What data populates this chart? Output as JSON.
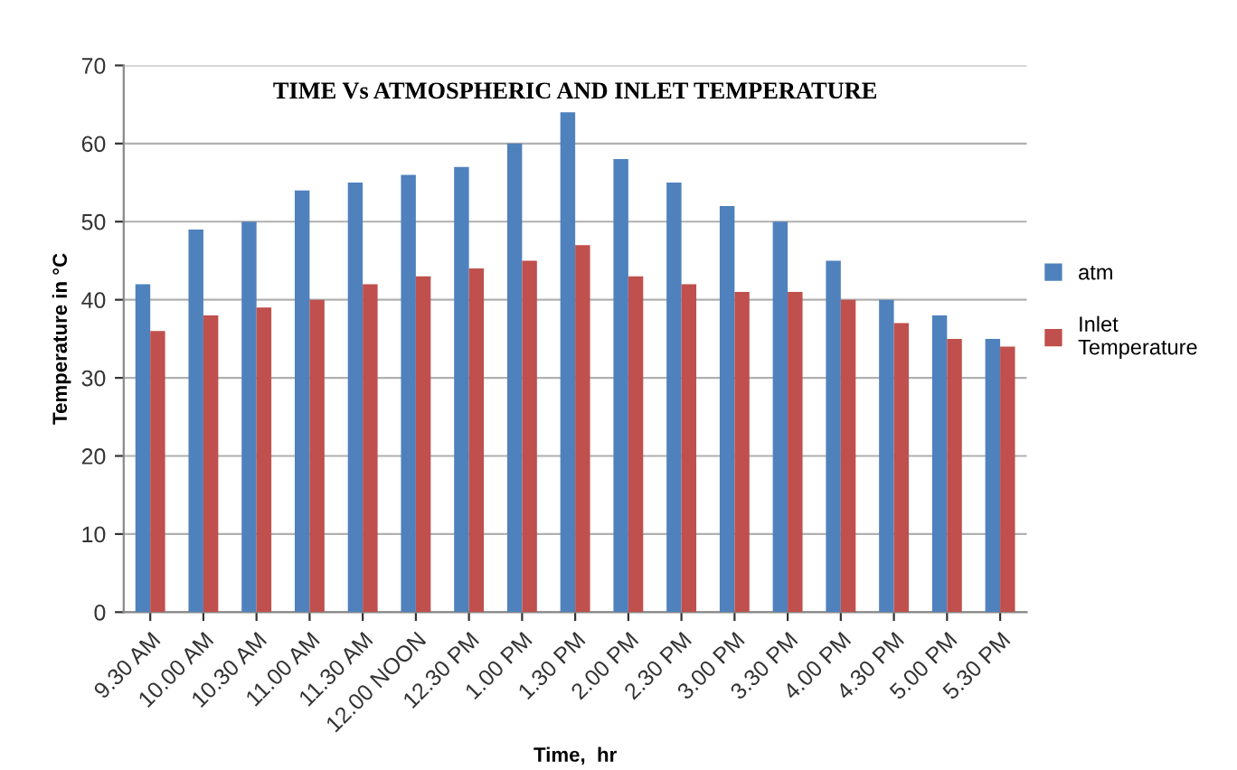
{
  "chart_data": {
    "type": "bar",
    "title": "TIME Vs ATMOSPHERIC AND INLET TEMPERATURE",
    "xlabel": "Time,  hr",
    "ylabel": "Temperature in °C",
    "categories": [
      "9.30 AM",
      "10.00 AM",
      "10.30 AM",
      "11.00 AM",
      "11.30 AM",
      "12.00 NOON",
      "12.30 PM",
      "1.00 PM",
      "1.30 PM",
      "2.00 PM",
      "2.30 PM",
      "3.00 PM",
      "3.30 PM",
      "4.00 PM",
      "4.30 PM",
      "5.00 PM",
      "5.30 PM"
    ],
    "series": [
      {
        "name": "atm",
        "color": "#4f81bd",
        "values": [
          42,
          49,
          50,
          54,
          55,
          56,
          57,
          60,
          64,
          58,
          55,
          52,
          50,
          45,
          40,
          38,
          35
        ]
      },
      {
        "name": "Inlet\nTemperature",
        "color": "#c0504d",
        "values": [
          36,
          38,
          39,
          40,
          42,
          43,
          44,
          45,
          47,
          43,
          42,
          41,
          41,
          40,
          37,
          35,
          34
        ]
      }
    ],
    "ylim": [
      0,
      70
    ],
    "yticks": [
      0,
      10,
      20,
      30,
      40,
      50,
      60,
      70
    ],
    "grid": "y",
    "legend": "right"
  }
}
